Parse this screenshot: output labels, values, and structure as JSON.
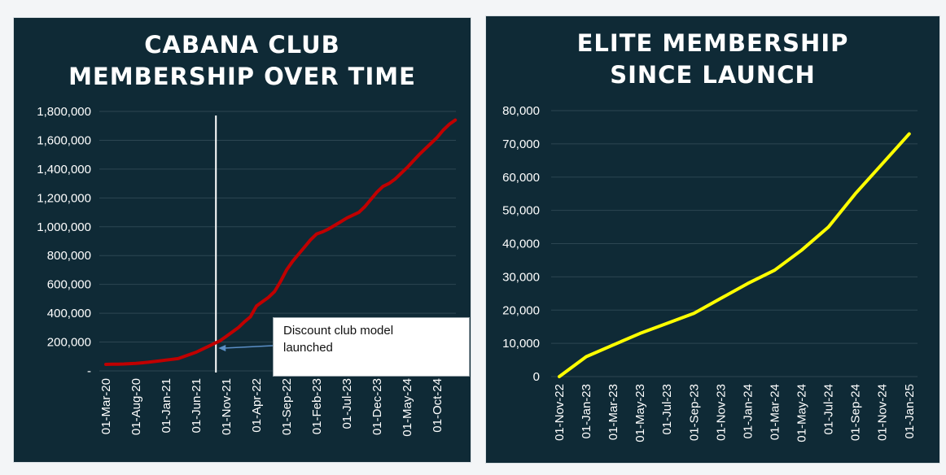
{
  "chart_data": [
    {
      "type": "line",
      "title_lines": [
        "CABANA CLUB",
        "MEMBERSHIP OVER TIME"
      ],
      "xlabel": "",
      "ylabel": "",
      "ylim": [
        0,
        1800000
      ],
      "grid": true,
      "yticks": [
        "-",
        "200,000",
        "400,000",
        "600,000",
        "800,000",
        "1,000,000",
        "1,200,000",
        "1,400,000",
        "1,600,000",
        "1,800,000"
      ],
      "xticks": [
        "01-Mar-20",
        "01-Aug-20",
        "01-Jan-21",
        "01-Jun-21",
        "01-Nov-21",
        "01-Apr-22",
        "01-Sep-22",
        "01-Feb-23",
        "01-Jul-23",
        "01-Dec-23",
        "01-May-24",
        "01-Oct-24"
      ],
      "line_color": "#c00000",
      "series": [
        {
          "x": [
            "01-Mar-20",
            "01-Apr-20",
            "01-May-20",
            "01-Jun-20",
            "01-Jul-20",
            "01-Aug-20",
            "01-Sep-20",
            "01-Oct-20",
            "01-Nov-20",
            "01-Dec-20",
            "01-Jan-21",
            "01-Feb-21",
            "01-Mar-21",
            "01-Apr-21",
            "01-May-21",
            "01-Jun-21",
            "01-Jul-21",
            "01-Aug-21",
            "01-Sep-21",
            "01-Oct-21",
            "01-Nov-21",
            "01-Dec-21",
            "01-Jan-22",
            "01-Feb-22",
            "01-Mar-22",
            "01-Apr-22",
            "01-May-22",
            "01-Jun-22",
            "01-Jul-22",
            "01-Aug-22",
            "01-Sep-22",
            "01-Oct-22",
            "01-Nov-22",
            "01-Dec-22",
            "01-Jan-23",
            "01-Feb-23",
            "01-Mar-23",
            "01-Apr-23",
            "01-May-23",
            "01-Jun-23",
            "01-Jul-23",
            "01-Aug-23",
            "01-Sep-23",
            "01-Oct-23",
            "01-Nov-23",
            "01-Dec-23",
            "01-Jan-24",
            "01-Feb-24",
            "01-Mar-24",
            "01-Apr-24",
            "01-May-24",
            "01-Jun-24",
            "01-Jul-24",
            "01-Aug-24",
            "01-Sep-24",
            "01-Oct-24",
            "01-Nov-24",
            "01-Dec-24",
            "01-Jan-25"
          ],
          "values": [
            45000,
            46000,
            47000,
            48000,
            50000,
            52000,
            56000,
            60000,
            65000,
            70000,
            75000,
            80000,
            85000,
            100000,
            115000,
            130000,
            150000,
            170000,
            190000,
            210000,
            240000,
            270000,
            300000,
            340000,
            375000,
            450000,
            480000,
            510000,
            550000,
            620000,
            700000,
            760000,
            810000,
            860000,
            910000,
            950000,
            965000,
            985000,
            1010000,
            1035000,
            1060000,
            1080000,
            1100000,
            1140000,
            1190000,
            1240000,
            1280000,
            1300000,
            1330000,
            1370000,
            1410000,
            1455000,
            1500000,
            1540000,
            1580000,
            1620000,
            1670000,
            1710000,
            1740000
          ]
        }
      ],
      "vline_at": "01-Sep-21",
      "annotation": {
        "text_line1": "Discount club model",
        "text_line2": "launched",
        "points_to": "01-Sep-21"
      }
    },
    {
      "type": "line",
      "title_lines": [
        "ELITE MEMBERSHIP",
        "SINCE LAUNCH"
      ],
      "xlabel": "",
      "ylabel": "",
      "ylim": [
        0,
        80000
      ],
      "grid": true,
      "yticks": [
        "0",
        "10,000",
        "20,000",
        "30,000",
        "40,000",
        "50,000",
        "60,000",
        "70,000",
        "80,000"
      ],
      "xticks": [
        "01-Nov-22",
        "01-Jan-23",
        "01-Mar-23",
        "01-May-23",
        "01-Jul-23",
        "01-Sep-23",
        "01-Nov-23",
        "01-Jan-24",
        "01-Mar-24",
        "01-May-24",
        "01-Jul-24",
        "01-Sep-24",
        "01-Nov-24",
        "01-Jan-25"
      ],
      "line_color": "#ffff00",
      "series": [
        {
          "x": [
            "01-Nov-22",
            "01-Jan-23",
            "01-Mar-23",
            "01-May-23",
            "01-Jul-23",
            "01-Sep-23",
            "01-Nov-23",
            "01-Jan-24",
            "01-Mar-24",
            "01-May-24",
            "01-Jul-24",
            "01-Sep-24",
            "01-Nov-24",
            "01-Jan-25"
          ],
          "values": [
            0,
            6000,
            9500,
            13000,
            16000,
            19000,
            23500,
            28000,
            32000,
            38000,
            45000,
            55000,
            64000,
            73000
          ]
        }
      ]
    }
  ]
}
